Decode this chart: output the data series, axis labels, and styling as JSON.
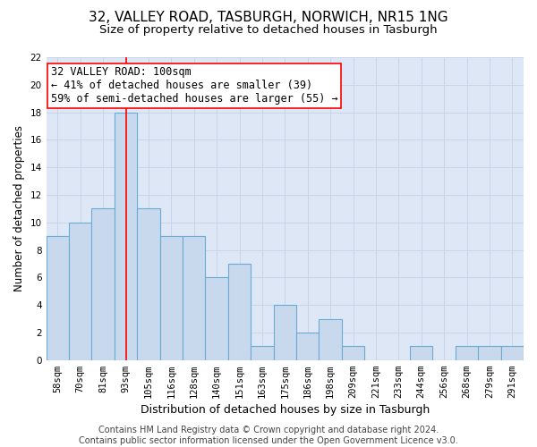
{
  "title1": "32, VALLEY ROAD, TASBURGH, NORWICH, NR15 1NG",
  "title2": "Size of property relative to detached houses in Tasburgh",
  "xlabel": "Distribution of detached houses by size in Tasburgh",
  "ylabel": "Number of detached properties",
  "categories": [
    "58sqm",
    "70sqm",
    "81sqm",
    "93sqm",
    "105sqm",
    "116sqm",
    "128sqm",
    "140sqm",
    "151sqm",
    "163sqm",
    "175sqm",
    "186sqm",
    "198sqm",
    "209sqm",
    "221sqm",
    "233sqm",
    "244sqm",
    "256sqm",
    "268sqm",
    "279sqm",
    "291sqm"
  ],
  "values": [
    9,
    10,
    11,
    18,
    11,
    9,
    9,
    6,
    7,
    1,
    4,
    2,
    3,
    1,
    0,
    0,
    1,
    0,
    1,
    1,
    1
  ],
  "bar_color": "#c8d9ee",
  "bar_edge_color": "#6aaad4",
  "bar_linewidth": 0.8,
  "redline_x": 3,
  "annotation_text": "32 VALLEY ROAD: 100sqm\n← 41% of detached houses are smaller (39)\n59% of semi-detached houses are larger (55) →",
  "annotation_box_color": "white",
  "annotation_box_edge": "red",
  "ylim": [
    0,
    22
  ],
  "yticks": [
    0,
    2,
    4,
    6,
    8,
    10,
    12,
    14,
    16,
    18,
    20,
    22
  ],
  "grid_color": "#c8d4e8",
  "background_color": "#dde7f5",
  "footnote": "Contains HM Land Registry data © Crown copyright and database right 2024.\nContains public sector information licensed under the Open Government Licence v3.0.",
  "title1_fontsize": 11,
  "title2_fontsize": 9.5,
  "xlabel_fontsize": 9,
  "ylabel_fontsize": 8.5,
  "tick_fontsize": 7.5,
  "annotation_fontsize": 8.5,
  "footnote_fontsize": 7
}
